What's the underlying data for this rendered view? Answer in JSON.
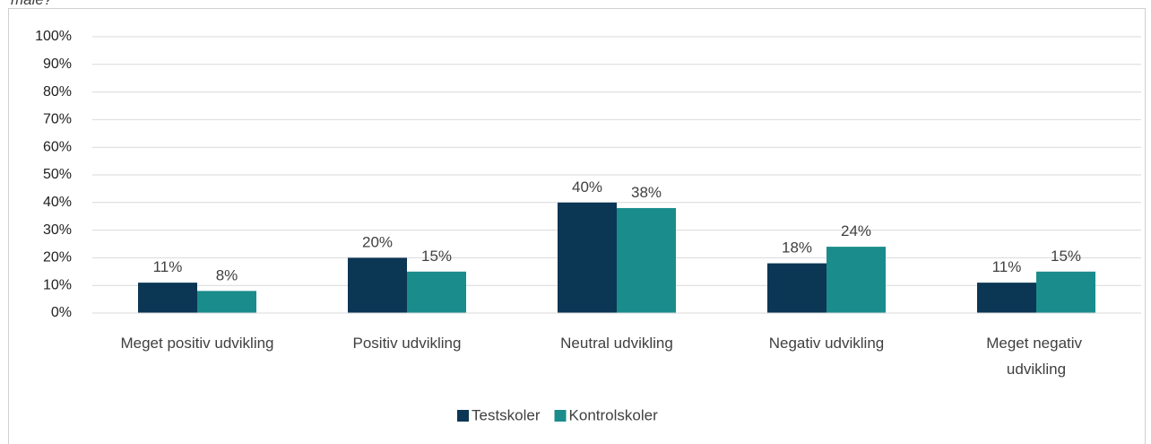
{
  "chart_data": {
    "type": "bar",
    "title": "måle?",
    "categories": [
      "Meget positiv udvikling",
      "Positiv udvikling",
      "Neutral udvikling",
      "Negativ udvikling",
      "Meget negativ udvikling"
    ],
    "series": [
      {
        "name": "Testskoler",
        "color": "#0b3654",
        "values": [
          11,
          20,
          40,
          18,
          11
        ],
        "value_labels": [
          "11%",
          "20%",
          "40%",
          "18%",
          "11%"
        ]
      },
      {
        "name": "Kontrolskoler",
        "color": "#1a8c8c",
        "values": [
          8,
          15,
          38,
          24,
          15
        ],
        "value_labels": [
          "8%",
          "15%",
          "38%",
          "24%",
          "15%"
        ]
      }
    ],
    "ylim": [
      0,
      100
    ],
    "yticks": [
      {
        "value": 0,
        "label": "0%"
      },
      {
        "value": 10,
        "label": "10%"
      },
      {
        "value": 20,
        "label": "20%"
      },
      {
        "value": 30,
        "label": "30%"
      },
      {
        "value": 40,
        "label": "40%"
      },
      {
        "value": 50,
        "label": "50%"
      },
      {
        "value": 60,
        "label": "60%"
      },
      {
        "value": 70,
        "label": "70%"
      },
      {
        "value": 80,
        "label": "80%"
      },
      {
        "value": 90,
        "label": "90%"
      },
      {
        "value": 100,
        "label": "100%"
      }
    ],
    "grid": true,
    "legend": "bottom"
  }
}
